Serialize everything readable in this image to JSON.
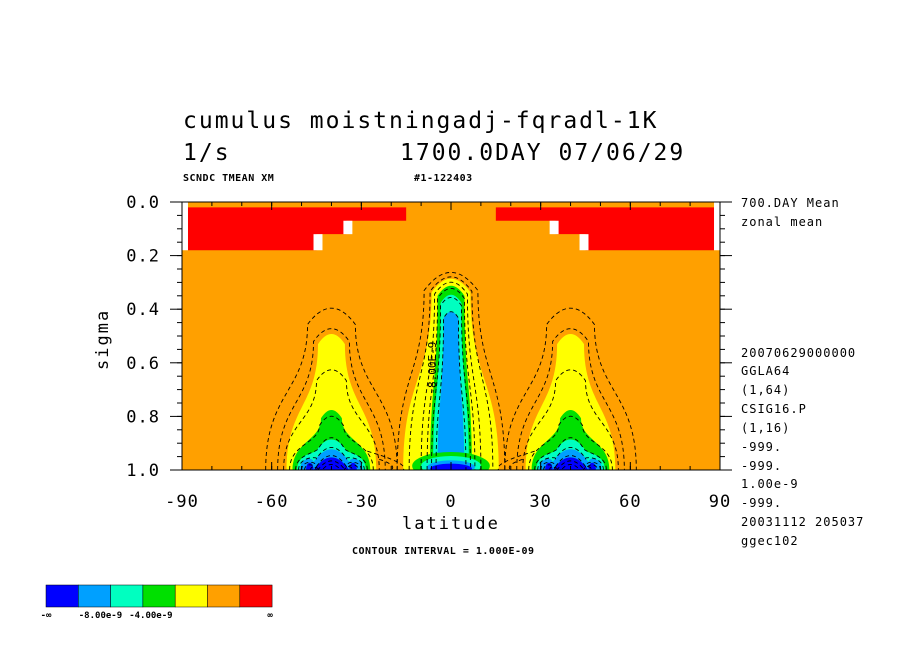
{
  "header": {
    "title_left": "cumulus moistningadj-fqradl-1K",
    "unit": "1/s",
    "title_right": "1700.0DAY 07/06/29",
    "sub_left": "SCNDC TMEAN XM",
    "sub_right": "#1-122403"
  },
  "side_info": [
    "700.DAY Mean",
    "zonal mean"
  ],
  "meta": [
    "20070629000000",
    "GGLA64",
    "(1,64)",
    "CSIG16.P",
    "(1,16)",
    "-999.",
    "-999.",
    "1.00e-9",
    "-999.",
    "20031112 205037",
    "ggec102"
  ],
  "contour_label": "-8.00E-9",
  "contour_interval": "CONTOUR INTERVAL = 1.000E-09",
  "colorbar": {
    "colors": [
      "#0000ff",
      "#00a0ff",
      "#00ffc0",
      "#00e000",
      "#ffff00",
      "#ffa000",
      "#ff0000"
    ],
    "labels": [
      "-∞",
      "-8.00e-9",
      "-4.00e-9",
      "∞"
    ]
  },
  "chart_data": {
    "type": "heatmap",
    "title": "cumulus moistningadj-fqradl-1K",
    "xlabel": "latitude",
    "ylabel": "sigma",
    "xlim": [
      -90,
      90
    ],
    "ylim": [
      1.0,
      0.0
    ],
    "xticks": [
      -90,
      -60,
      -30,
      0,
      30,
      60,
      90
    ],
    "xtick_labels": [
      "-90",
      "-60",
      "-30",
      "0",
      "30",
      "60",
      "90"
    ],
    "yticks": [
      0.0,
      0.2,
      0.4,
      0.6,
      0.8,
      1.0
    ],
    "ytick_labels": [
      "0.0",
      "0.2",
      "0.4",
      "0.6",
      "0.8",
      "1.0"
    ],
    "levels": [
      "-inf",
      -1.2e-08,
      -8e-09,
      -6e-09,
      -4e-09,
      -2e-09,
      0.0,
      "inf"
    ],
    "level_colors": [
      "#0000ff",
      "#00a0ff",
      "#00ffc0",
      "#00e000",
      "#ffff00",
      "#ffa000",
      "#ff0000"
    ],
    "features": [
      {
        "name": "equatorial column",
        "lat_center": 0,
        "sigma_top": 0.22,
        "sigma_bottom": 1.0,
        "min_value": -1.3e-08
      },
      {
        "name": "southern midlatitude maximum",
        "lat_center": -40,
        "sigma_top": 0.36,
        "sigma_bottom": 1.0,
        "min_value": -1.4e-08
      },
      {
        "name": "northern midlatitude maximum",
        "lat_center": 40,
        "sigma_top": 0.36,
        "sigma_bottom": 1.0,
        "min_value": -1.4e-08
      },
      {
        "name": "positive upper-level regions",
        "sigma_range": [
          0.02,
          0.18
        ],
        "value_band": "positive"
      }
    ]
  }
}
